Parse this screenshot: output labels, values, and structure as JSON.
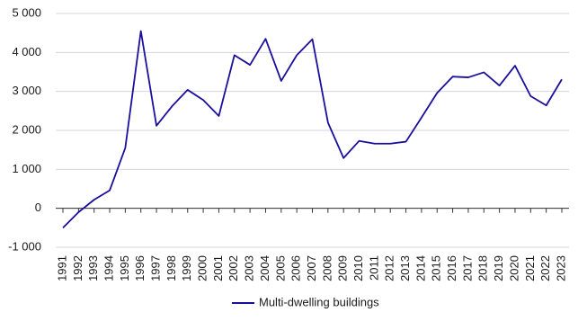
{
  "chart_data": {
    "type": "line",
    "categories": [
      "1991",
      "1992",
      "1993",
      "1994",
      "1995",
      "1996",
      "1997",
      "1998",
      "1999",
      "2000",
      "2001",
      "2002",
      "2003",
      "2004",
      "2005",
      "2006",
      "2007",
      "2008",
      "2009",
      "2010",
      "2011",
      "2012",
      "2013",
      "2014",
      "2015",
      "2016",
      "2017",
      "2018",
      "2019",
      "2020",
      "2021",
      "2022",
      "2023"
    ],
    "series": [
      {
        "name": "Multi-dwelling buildings",
        "color": "#1a0f9c",
        "values": [
          -500,
          -100,
          220,
          460,
          1550,
          4550,
          2120,
          2620,
          3040,
          2780,
          2370,
          3930,
          3680,
          4350,
          3270,
          3930,
          4340,
          2200,
          1290,
          1730,
          1660,
          1660,
          1710,
          2330,
          2960,
          3380,
          3360,
          3490,
          3150,
          3660,
          2880,
          2640,
          3310
        ]
      }
    ],
    "ylim": [
      -1000,
      5000
    ],
    "yticks": [
      {
        "value": -1000,
        "label": "-1 000"
      },
      0,
      {
        "value": 1000,
        "label": "1 000"
      },
      {
        "value": 2000,
        "label": "2 000"
      },
      {
        "value": 3000,
        "label": "3 000"
      },
      {
        "value": 4000,
        "label": "4 000"
      },
      {
        "value": 5000,
        "label": "5 000"
      }
    ],
    "grid": true
  }
}
